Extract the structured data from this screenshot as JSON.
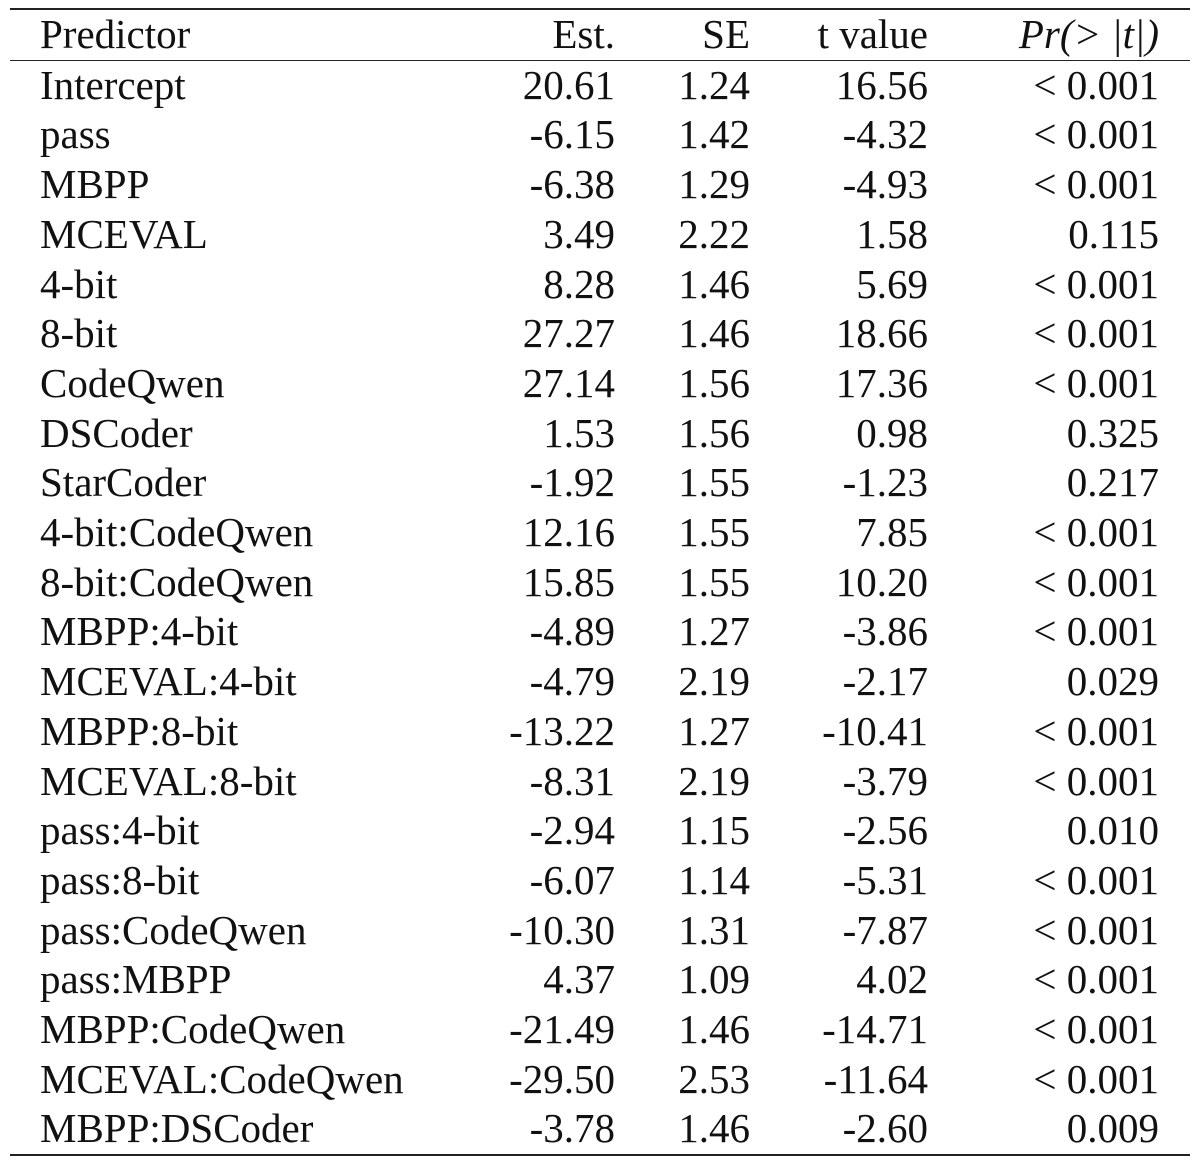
{
  "table": {
    "headers": {
      "predictor": "Predictor",
      "est": "Est.",
      "se": "SE",
      "t": "t value",
      "p": "Pr(> |t|)"
    },
    "rows": [
      {
        "predictor": "Intercept",
        "est": "20.61",
        "se": "1.24",
        "t": "16.56",
        "p": "< 0.001"
      },
      {
        "predictor": "pass",
        "est": "-6.15",
        "se": "1.42",
        "t": "-4.32",
        "p": "< 0.001"
      },
      {
        "predictor": "MBPP",
        "est": "-6.38",
        "se": "1.29",
        "t": "-4.93",
        "p": "< 0.001"
      },
      {
        "predictor": "MCEVAL",
        "est": "3.49",
        "se": "2.22",
        "t": "1.58",
        "p": "0.115"
      },
      {
        "predictor": "4-bit",
        "est": "8.28",
        "se": "1.46",
        "t": "5.69",
        "p": "< 0.001"
      },
      {
        "predictor": "8-bit",
        "est": "27.27",
        "se": "1.46",
        "t": "18.66",
        "p": "< 0.001"
      },
      {
        "predictor": "CodeQwen",
        "est": "27.14",
        "se": "1.56",
        "t": "17.36",
        "p": "< 0.001"
      },
      {
        "predictor": "DSCoder",
        "est": "1.53",
        "se": "1.56",
        "t": "0.98",
        "p": "0.325"
      },
      {
        "predictor": "StarCoder",
        "est": "-1.92",
        "se": "1.55",
        "t": "-1.23",
        "p": "0.217"
      },
      {
        "predictor": "4-bit:CodeQwen",
        "est": "12.16",
        "se": "1.55",
        "t": "7.85",
        "p": "< 0.001"
      },
      {
        "predictor": "8-bit:CodeQwen",
        "est": "15.85",
        "se": "1.55",
        "t": "10.20",
        "p": "< 0.001"
      },
      {
        "predictor": "MBPP:4-bit",
        "est": "-4.89",
        "se": "1.27",
        "t": "-3.86",
        "p": "< 0.001"
      },
      {
        "predictor": "MCEVAL:4-bit",
        "est": "-4.79",
        "se": "2.19",
        "t": "-2.17",
        "p": "0.029"
      },
      {
        "predictor": "MBPP:8-bit",
        "est": "-13.22",
        "se": "1.27",
        "t": "-10.41",
        "p": "< 0.001"
      },
      {
        "predictor": "MCEVAL:8-bit",
        "est": "-8.31",
        "se": "2.19",
        "t": "-3.79",
        "p": "< 0.001"
      },
      {
        "predictor": "pass:4-bit",
        "est": "-2.94",
        "se": "1.15",
        "t": "-2.56",
        "p": "0.010"
      },
      {
        "predictor": "pass:8-bit",
        "est": "-6.07",
        "se": "1.14",
        "t": "-5.31",
        "p": "< 0.001"
      },
      {
        "predictor": "pass:CodeQwen",
        "est": "-10.30",
        "se": "1.31",
        "t": "-7.87",
        "p": "< 0.001"
      },
      {
        "predictor": "pass:MBPP",
        "est": "4.37",
        "se": "1.09",
        "t": "4.02",
        "p": "< 0.001"
      },
      {
        "predictor": "MBPP:CodeQwen",
        "est": "-21.49",
        "se": "1.46",
        "t": "-14.71",
        "p": "< 0.001"
      },
      {
        "predictor": "MCEVAL:CodeQwen",
        "est": "-29.50",
        "se": "2.53",
        "t": "-11.64",
        "p": "< 0.001"
      },
      {
        "predictor": "MBPP:DSCoder",
        "est": "-3.78",
        "se": "1.46",
        "t": "-2.60",
        "p": "0.009"
      }
    ]
  }
}
